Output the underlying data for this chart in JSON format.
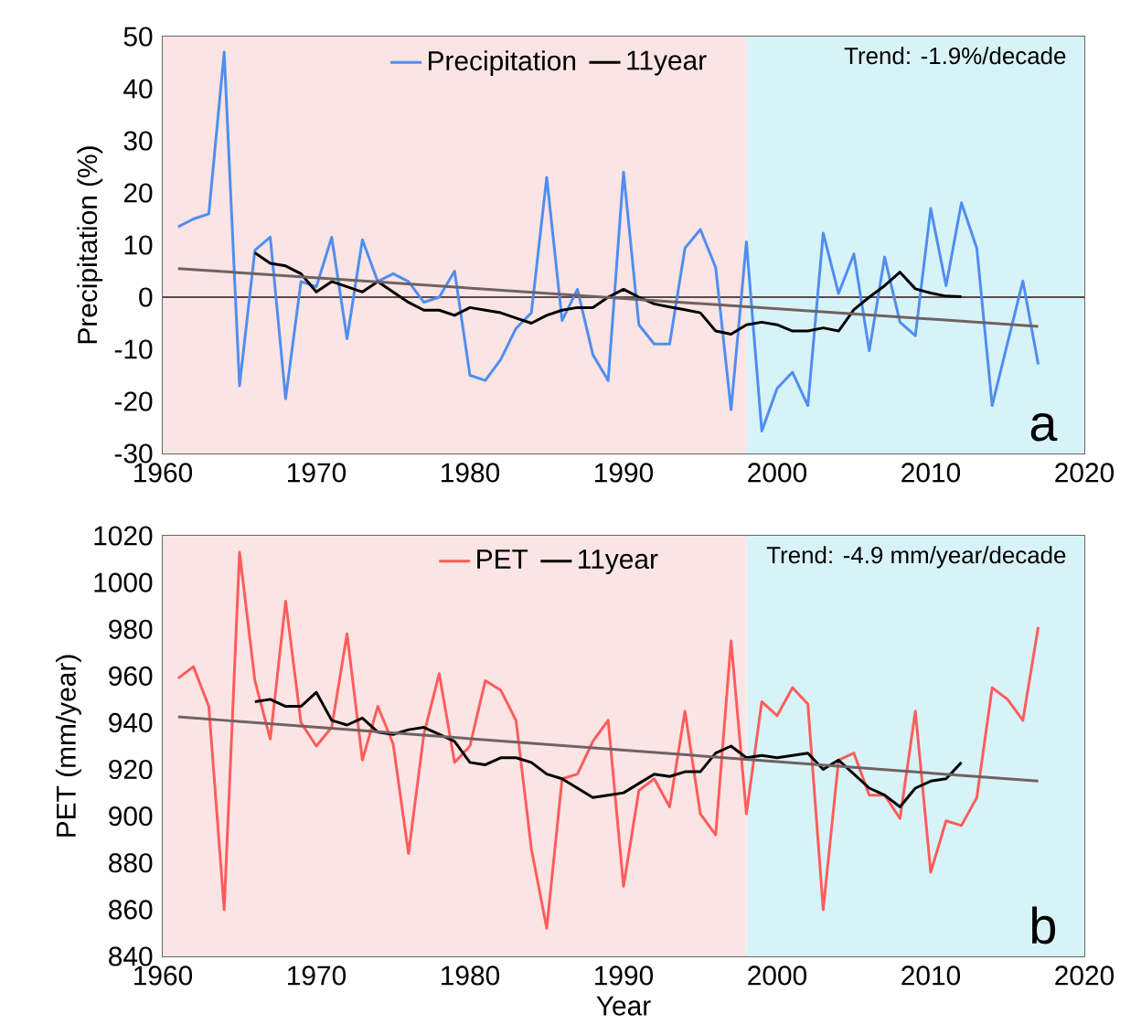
{
  "chart_data": [
    {
      "type": "line",
      "ylabel": "Precipitation (%)",
      "legend": "top",
      "x": [
        1961,
        1962,
        1963,
        1964,
        1965,
        1966,
        1967,
        1968,
        1969,
        1970,
        1971,
        1972,
        1973,
        1974,
        1975,
        1976,
        1977,
        1978,
        1979,
        1980,
        1981,
        1982,
        1983,
        1984,
        1985,
        1986,
        1987,
        1988,
        1989,
        1990,
        1991,
        1992,
        1993,
        1994,
        1995,
        1996,
        1997,
        1998,
        1999,
        2000,
        2001,
        2002,
        2003,
        2004,
        2005,
        2006,
        2007,
        2008,
        2009,
        2010,
        2011,
        2012,
        2013,
        2014,
        2015,
        2016,
        2017
      ],
      "series": [
        {
          "name": "Precipitation",
          "color": "#4f8ef0",
          "values": [
            13.5,
            15,
            16,
            47,
            -17,
            9,
            11.5,
            -19.5,
            3,
            2,
            11.5,
            -8,
            11,
            3,
            4.5,
            3,
            -1,
            0,
            5,
            -15,
            -16,
            -12,
            -6,
            -3,
            23,
            -4.5,
            1.5,
            -11,
            -16,
            24,
            -5.3,
            -9,
            -9,
            9.4,
            13,
            5.7,
            -21.6,
            10.6,
            -25.7,
            -17.5,
            -14.4,
            -20.8,
            12.3,
            0.7,
            8.3,
            -10.3,
            7.7,
            -4.8,
            -7.4,
            17,
            2.2,
            18.1,
            9.4,
            -20.8,
            -8.8,
            3.1,
            -12.9
          ]
        },
        {
          "name": "11year",
          "color": "#000000",
          "x": [
            1966,
            1967,
            1968,
            1969,
            1970,
            1971,
            1972,
            1973,
            1974,
            1975,
            1976,
            1977,
            1978,
            1979,
            1980,
            1981,
            1982,
            1983,
            1984,
            1985,
            1986,
            1987,
            1988,
            1989,
            1990,
            1991,
            1992,
            1993,
            1994,
            1995,
            1996,
            1997,
            1998,
            1999,
            2000,
            2001,
            2002,
            2003,
            2004,
            2005,
            2006,
            2007,
            2008,
            2009,
            2010,
            2011,
            2012
          ],
          "values": [
            8.5,
            6.5,
            6,
            4.5,
            1,
            3,
            2,
            1,
            3,
            1,
            -1,
            -2.5,
            -2.5,
            -3.5,
            -2,
            -2.5,
            -3,
            -4,
            -5,
            -3.5,
            -2.5,
            -2,
            -2,
            0,
            1.5,
            0,
            -1.3,
            -1.9,
            -2.4,
            -3,
            -6.5,
            -7.1,
            -5.3,
            -4.8,
            -5.3,
            -6.5,
            -6.5,
            -5.9,
            -6.5,
            -2.4,
            0,
            2.2,
            4.8,
            1.6,
            0.8,
            0.2,
            0.1
          ]
        },
        {
          "color": "#6e6262",
          "x": [
            1961,
            2017
          ],
          "values": [
            5.5,
            -5.6
          ]
        }
      ],
      "xlim": [
        1960,
        2020
      ],
      "xticks": [
        1960,
        1970,
        1980,
        1990,
        2000,
        2010,
        2020
      ],
      "ylim": [
        -30,
        50
      ],
      "yticks": [
        -30,
        -20,
        -10,
        0,
        10,
        20,
        30,
        40,
        50
      ],
      "ref_lines": [
        {
          "axis": "y",
          "value": 0,
          "color": "#5a4a4a"
        }
      ],
      "bands": [
        {
          "axis": "x",
          "from": 1960,
          "to": 1998,
          "color": "#fbe4e4"
        },
        {
          "axis": "x",
          "from": 1998,
          "to": 2020,
          "color": "#d8f3f8"
        }
      ],
      "annotations": [
        "Trend: -1.9%/decade",
        "a"
      ]
    },
    {
      "type": "line",
      "ylabel": "PET (mm/year)",
      "xlabel": "Year",
      "legend": "top",
      "x": [
        1961,
        1962,
        1963,
        1964,
        1965,
        1966,
        1967,
        1968,
        1969,
        1970,
        1971,
        1972,
        1973,
        1974,
        1975,
        1976,
        1977,
        1978,
        1979,
        1980,
        1981,
        1982,
        1983,
        1984,
        1985,
        1986,
        1987,
        1988,
        1989,
        1990,
        1991,
        1992,
        1993,
        1994,
        1995,
        1996,
        1997,
        1998,
        1999,
        2000,
        2001,
        2002,
        2003,
        2004,
        2005,
        2006,
        2007,
        2008,
        2009,
        2010,
        2011,
        2012,
        2013,
        2014,
        2015,
        2016,
        2017
      ],
      "series": [
        {
          "name": "PET",
          "color": "#ff5c5c",
          "values": [
            959,
            964,
            947,
            860,
            1013,
            958,
            933,
            992,
            940,
            930,
            938,
            978,
            924,
            947,
            931,
            884,
            935,
            961,
            923,
            930,
            958,
            954,
            941,
            886,
            852,
            916,
            918,
            932,
            941,
            870,
            911,
            916,
            904,
            945,
            901,
            892,
            975,
            901,
            949,
            943,
            955,
            948,
            860,
            924,
            927,
            909,
            909,
            899,
            945,
            876,
            898,
            896,
            908,
            955,
            950,
            941,
            981
          ]
        },
        {
          "name": "11year",
          "color": "#000000",
          "x": [
            1966,
            1967,
            1968,
            1969,
            1970,
            1971,
            1972,
            1973,
            1974,
            1975,
            1976,
            1977,
            1978,
            1979,
            1980,
            1981,
            1982,
            1983,
            1984,
            1985,
            1986,
            1987,
            1988,
            1989,
            1990,
            1991,
            1992,
            1993,
            1994,
            1995,
            1996,
            1997,
            1998,
            1999,
            2000,
            2001,
            2002,
            2003,
            2004,
            2005,
            2006,
            2007,
            2008,
            2009,
            2010,
            2011,
            2012
          ],
          "values": [
            949,
            950,
            947,
            947,
            953,
            941,
            939,
            942,
            936,
            935,
            937,
            938,
            935,
            932,
            923,
            922,
            925,
            925,
            923,
            918,
            916,
            912,
            908,
            909,
            910,
            914,
            918,
            917,
            919,
            919,
            927,
            930,
            925,
            926,
            925,
            926,
            927,
            920,
            924,
            918,
            912,
            909,
            904,
            912,
            915,
            916,
            923
          ]
        },
        {
          "color": "#6e6262",
          "x": [
            1961,
            2017
          ],
          "values": [
            942.5,
            915
          ]
        }
      ],
      "xlim": [
        1960,
        2020
      ],
      "xticks": [
        1960,
        1970,
        1980,
        1990,
        2000,
        2010,
        2020
      ],
      "ylim": [
        840,
        1020
      ],
      "yticks": [
        840,
        860,
        880,
        900,
        920,
        940,
        960,
        980,
        1000,
        1020
      ],
      "bands": [
        {
          "axis": "x",
          "from": 1960,
          "to": 1998,
          "color": "#fbe4e4"
        },
        {
          "axis": "x",
          "from": 1998,
          "to": 2020,
          "color": "#d8f3f8"
        }
      ],
      "annotations": [
        "Trend: -4.9 mm/year/decade",
        "b"
      ]
    }
  ]
}
